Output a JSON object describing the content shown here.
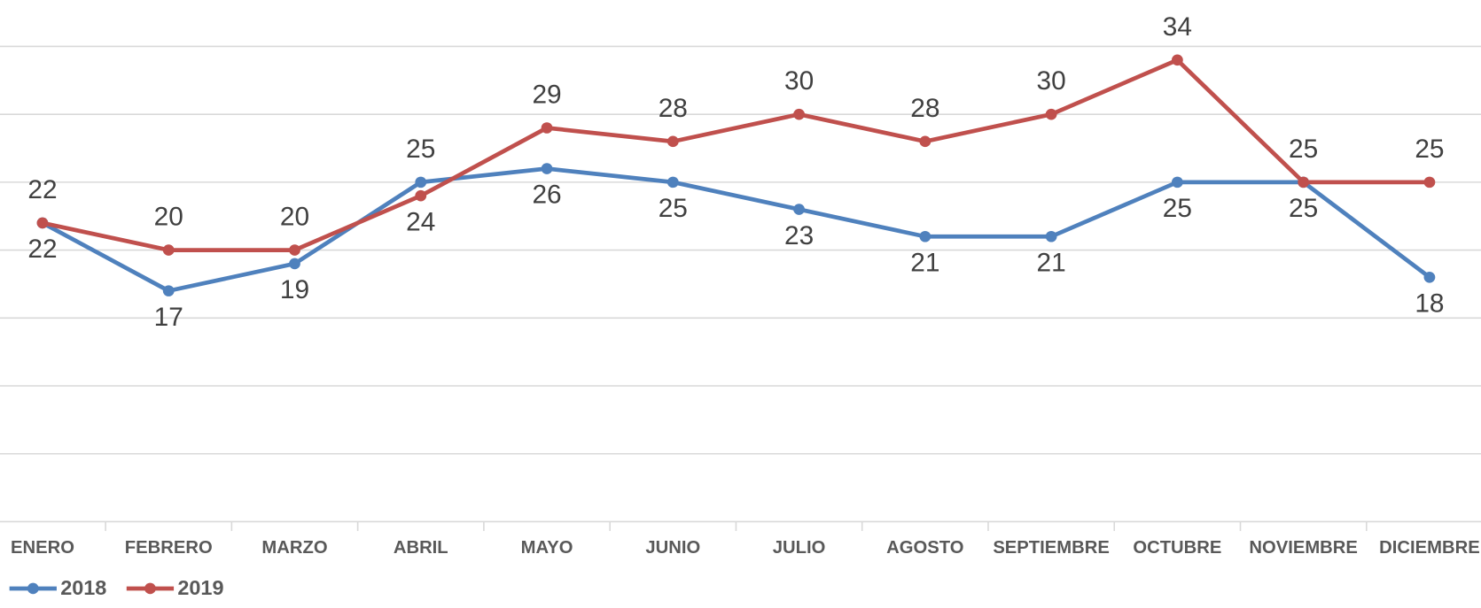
{
  "chart_data": {
    "type": "line",
    "categories": [
      "ENERO",
      "FEBRERO",
      "MARZO",
      "ABRIL",
      "MAYO",
      "JUNIO",
      "JULIO",
      "AGOSTO",
      "SEPTIEMBRE",
      "OCTUBRE",
      "NOVIEMBRE",
      "DICIEMBRE"
    ],
    "series": [
      {
        "name": "2018",
        "color": "#4f81bd",
        "values": [
          22,
          17,
          19,
          25,
          26,
          25,
          23,
          21,
          21,
          25,
          25,
          18
        ]
      },
      {
        "name": "2019",
        "color": "#c0504d",
        "values": [
          22,
          20,
          20,
          24,
          29,
          28,
          30,
          28,
          30,
          34,
          25,
          25
        ]
      }
    ],
    "ylim": [
      0,
      35
    ],
    "yticks": [
      0,
      5,
      10,
      15,
      20,
      25,
      30,
      35
    ],
    "grid": true,
    "legend": "bottom-left"
  }
}
